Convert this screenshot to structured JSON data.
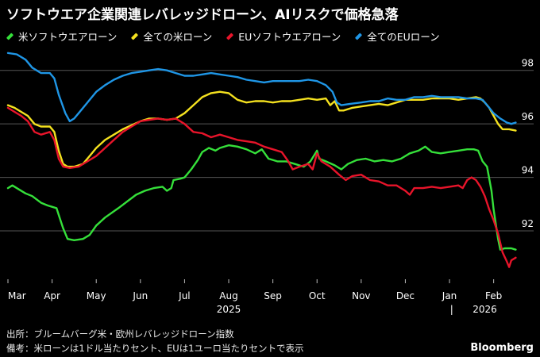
{
  "chart_data": {
    "type": "line",
    "title": "ソフトウエア企業関連レバレッジドローン、AIリスクで価格急落",
    "xlabel": "",
    "ylabel": "",
    "ylim": [
      90.4,
      99.0
    ],
    "yticks": [
      92,
      94,
      96,
      98
    ],
    "grid": true,
    "legend_position": "top-left",
    "x_month_labels": [
      "Mar",
      "Apr",
      "May",
      "Jun",
      "Jul",
      "Aug",
      "Sep",
      "Oct",
      "Nov",
      "Dec",
      "Jan",
      "Feb"
    ],
    "year_labels": [
      {
        "label": "2025",
        "month_index": 5
      },
      {
        "label": "2026",
        "month_index": 10.8
      }
    ],
    "year_separator": "|",
    "x_unit": "months since start of March 2025",
    "series": [
      {
        "name": "米ソフトウエアローン",
        "color": "#35e03a",
        "points": [
          [
            0,
            93.6
          ],
          [
            0.1,
            93.7
          ],
          [
            0.25,
            93.55
          ],
          [
            0.4,
            93.4
          ],
          [
            0.55,
            93.3
          ],
          [
            0.75,
            93.05
          ],
          [
            0.9,
            92.95
          ],
          [
            1.0,
            92.9
          ],
          [
            1.1,
            92.85
          ],
          [
            1.15,
            92.6
          ],
          [
            1.25,
            92.1
          ],
          [
            1.35,
            91.7
          ],
          [
            1.5,
            91.65
          ],
          [
            1.7,
            91.7
          ],
          [
            1.85,
            91.85
          ],
          [
            2.0,
            92.2
          ],
          [
            2.2,
            92.5
          ],
          [
            2.5,
            92.85
          ],
          [
            2.7,
            93.1
          ],
          [
            2.9,
            93.35
          ],
          [
            3.1,
            93.5
          ],
          [
            3.3,
            93.6
          ],
          [
            3.5,
            93.65
          ],
          [
            3.6,
            93.5
          ],
          [
            3.7,
            93.6
          ],
          [
            3.75,
            93.9
          ],
          [
            3.9,
            93.95
          ],
          [
            4.0,
            94.0
          ],
          [
            4.15,
            94.3
          ],
          [
            4.3,
            94.65
          ],
          [
            4.4,
            94.95
          ],
          [
            4.55,
            95.1
          ],
          [
            4.7,
            95.0
          ],
          [
            4.8,
            95.1
          ],
          [
            5.0,
            95.2
          ],
          [
            5.2,
            95.15
          ],
          [
            5.4,
            95.05
          ],
          [
            5.6,
            94.9
          ],
          [
            5.75,
            95.05
          ],
          [
            5.9,
            94.7
          ],
          [
            6.1,
            94.6
          ],
          [
            6.3,
            94.6
          ],
          [
            6.5,
            94.5
          ],
          [
            6.7,
            94.4
          ],
          [
            6.85,
            94.6
          ],
          [
            7.0,
            95.0
          ],
          [
            7.05,
            94.7
          ],
          [
            7.2,
            94.6
          ],
          [
            7.4,
            94.45
          ],
          [
            7.55,
            94.3
          ],
          [
            7.7,
            94.5
          ],
          [
            7.9,
            94.65
          ],
          [
            8.1,
            94.7
          ],
          [
            8.3,
            94.6
          ],
          [
            8.5,
            94.65
          ],
          [
            8.7,
            94.6
          ],
          [
            8.9,
            94.7
          ],
          [
            9.1,
            94.9
          ],
          [
            9.3,
            95.0
          ],
          [
            9.45,
            95.15
          ],
          [
            9.6,
            94.95
          ],
          [
            9.8,
            94.9
          ],
          [
            10.0,
            94.95
          ],
          [
            10.2,
            95.0
          ],
          [
            10.4,
            95.05
          ],
          [
            10.55,
            95.05
          ],
          [
            10.65,
            95.0
          ],
          [
            10.75,
            94.6
          ],
          [
            10.85,
            94.4
          ],
          [
            10.95,
            93.5
          ],
          [
            11.0,
            92.8
          ],
          [
            11.1,
            91.7
          ],
          [
            11.15,
            91.3
          ],
          [
            11.25,
            91.35
          ],
          [
            11.4,
            91.35
          ],
          [
            11.5,
            91.3
          ]
        ]
      },
      {
        "name": "全ての米ローン",
        "color": "#f4e11f",
        "points": [
          [
            0,
            96.7
          ],
          [
            0.15,
            96.6
          ],
          [
            0.3,
            96.45
          ],
          [
            0.45,
            96.3
          ],
          [
            0.6,
            96.0
          ],
          [
            0.75,
            95.9
          ],
          [
            0.95,
            95.9
          ],
          [
            1.05,
            95.7
          ],
          [
            1.15,
            95.0
          ],
          [
            1.25,
            94.5
          ],
          [
            1.35,
            94.4
          ],
          [
            1.5,
            94.4
          ],
          [
            1.7,
            94.5
          ],
          [
            1.85,
            94.8
          ],
          [
            2.0,
            95.1
          ],
          [
            2.2,
            95.4
          ],
          [
            2.4,
            95.6
          ],
          [
            2.6,
            95.8
          ],
          [
            2.8,
            95.95
          ],
          [
            3.0,
            96.1
          ],
          [
            3.2,
            96.2
          ],
          [
            3.4,
            96.2
          ],
          [
            3.6,
            96.15
          ],
          [
            3.8,
            96.2
          ],
          [
            4.0,
            96.4
          ],
          [
            4.2,
            96.7
          ],
          [
            4.4,
            97.0
          ],
          [
            4.6,
            97.15
          ],
          [
            4.8,
            97.2
          ],
          [
            5.0,
            97.15
          ],
          [
            5.2,
            96.9
          ],
          [
            5.4,
            96.8
          ],
          [
            5.6,
            96.85
          ],
          [
            5.8,
            96.85
          ],
          [
            6.0,
            96.8
          ],
          [
            6.2,
            96.85
          ],
          [
            6.4,
            96.85
          ],
          [
            6.6,
            96.9
          ],
          [
            6.8,
            96.95
          ],
          [
            7.0,
            96.9
          ],
          [
            7.2,
            96.95
          ],
          [
            7.3,
            96.7
          ],
          [
            7.4,
            96.85
          ],
          [
            7.5,
            96.5
          ],
          [
            7.6,
            96.5
          ],
          [
            7.8,
            96.6
          ],
          [
            8.0,
            96.65
          ],
          [
            8.2,
            96.7
          ],
          [
            8.4,
            96.75
          ],
          [
            8.6,
            96.7
          ],
          [
            8.8,
            96.8
          ],
          [
            9.0,
            96.9
          ],
          [
            9.2,
            96.9
          ],
          [
            9.4,
            96.9
          ],
          [
            9.6,
            96.95
          ],
          [
            9.8,
            96.95
          ],
          [
            10.0,
            96.95
          ],
          [
            10.2,
            96.9
          ],
          [
            10.4,
            96.95
          ],
          [
            10.6,
            97.0
          ],
          [
            10.7,
            96.95
          ],
          [
            10.8,
            96.8
          ],
          [
            10.9,
            96.6
          ],
          [
            11.0,
            96.3
          ],
          [
            11.1,
            96.0
          ],
          [
            11.2,
            95.8
          ],
          [
            11.35,
            95.8
          ],
          [
            11.5,
            95.75
          ]
        ]
      },
      {
        "name": "EUソフトウエアローン",
        "color": "#e8142a",
        "points": [
          [
            0,
            96.6
          ],
          [
            0.15,
            96.45
          ],
          [
            0.3,
            96.3
          ],
          [
            0.45,
            96.1
          ],
          [
            0.6,
            95.7
          ],
          [
            0.75,
            95.6
          ],
          [
            0.95,
            95.7
          ],
          [
            1.05,
            95.4
          ],
          [
            1.15,
            94.7
          ],
          [
            1.25,
            94.4
          ],
          [
            1.4,
            94.35
          ],
          [
            1.6,
            94.4
          ],
          [
            1.8,
            94.6
          ],
          [
            2.0,
            94.8
          ],
          [
            2.2,
            95.1
          ],
          [
            2.4,
            95.4
          ],
          [
            2.6,
            95.7
          ],
          [
            2.8,
            95.9
          ],
          [
            3.0,
            96.1
          ],
          [
            3.2,
            96.15
          ],
          [
            3.4,
            96.2
          ],
          [
            3.6,
            96.15
          ],
          [
            3.8,
            96.2
          ],
          [
            4.0,
            96.0
          ],
          [
            4.2,
            95.7
          ],
          [
            4.4,
            95.65
          ],
          [
            4.6,
            95.5
          ],
          [
            4.8,
            95.6
          ],
          [
            5.0,
            95.5
          ],
          [
            5.2,
            95.4
          ],
          [
            5.4,
            95.35
          ],
          [
            5.6,
            95.3
          ],
          [
            5.8,
            95.15
          ],
          [
            6.0,
            95.05
          ],
          [
            6.2,
            94.95
          ],
          [
            6.35,
            94.6
          ],
          [
            6.45,
            94.3
          ],
          [
            6.6,
            94.4
          ],
          [
            6.8,
            94.5
          ],
          [
            6.9,
            94.3
          ],
          [
            7.0,
            94.9
          ],
          [
            7.1,
            94.6
          ],
          [
            7.3,
            94.4
          ],
          [
            7.5,
            94.1
          ],
          [
            7.65,
            93.9
          ],
          [
            7.8,
            94.05
          ],
          [
            8.0,
            94.1
          ],
          [
            8.2,
            93.9
          ],
          [
            8.4,
            93.85
          ],
          [
            8.6,
            93.7
          ],
          [
            8.8,
            93.7
          ],
          [
            9.0,
            93.5
          ],
          [
            9.1,
            93.35
          ],
          [
            9.2,
            93.6
          ],
          [
            9.4,
            93.6
          ],
          [
            9.6,
            93.65
          ],
          [
            9.8,
            93.6
          ],
          [
            10.0,
            93.65
          ],
          [
            10.2,
            93.7
          ],
          [
            10.3,
            93.6
          ],
          [
            10.4,
            93.9
          ],
          [
            10.5,
            94.0
          ],
          [
            10.6,
            93.9
          ],
          [
            10.7,
            93.65
          ],
          [
            10.8,
            93.3
          ],
          [
            10.9,
            92.8
          ],
          [
            11.0,
            92.4
          ],
          [
            11.1,
            91.9
          ],
          [
            11.2,
            91.2
          ],
          [
            11.3,
            90.85
          ],
          [
            11.35,
            90.65
          ],
          [
            11.4,
            90.9
          ],
          [
            11.5,
            91.0
          ]
        ]
      },
      {
        "name": "全てのEUローン",
        "color": "#1f96e6",
        "points": [
          [
            0,
            98.65
          ],
          [
            0.2,
            98.6
          ],
          [
            0.4,
            98.4
          ],
          [
            0.55,
            98.1
          ],
          [
            0.75,
            97.9
          ],
          [
            0.95,
            97.9
          ],
          [
            1.05,
            97.7
          ],
          [
            1.15,
            97.1
          ],
          [
            1.3,
            96.4
          ],
          [
            1.4,
            96.1
          ],
          [
            1.5,
            96.2
          ],
          [
            1.6,
            96.4
          ],
          [
            1.8,
            96.8
          ],
          [
            2.0,
            97.2
          ],
          [
            2.2,
            97.45
          ],
          [
            2.4,
            97.65
          ],
          [
            2.6,
            97.8
          ],
          [
            2.8,
            97.9
          ],
          [
            3.0,
            97.95
          ],
          [
            3.2,
            98.0
          ],
          [
            3.4,
            98.05
          ],
          [
            3.6,
            98.0
          ],
          [
            3.8,
            97.9
          ],
          [
            4.0,
            97.8
          ],
          [
            4.2,
            97.8
          ],
          [
            4.4,
            97.85
          ],
          [
            4.6,
            97.9
          ],
          [
            4.8,
            97.85
          ],
          [
            5.0,
            97.8
          ],
          [
            5.2,
            97.75
          ],
          [
            5.4,
            97.65
          ],
          [
            5.6,
            97.6
          ],
          [
            5.8,
            97.55
          ],
          [
            6.0,
            97.6
          ],
          [
            6.2,
            97.6
          ],
          [
            6.4,
            97.6
          ],
          [
            6.6,
            97.6
          ],
          [
            6.8,
            97.65
          ],
          [
            7.0,
            97.6
          ],
          [
            7.2,
            97.45
          ],
          [
            7.35,
            97.2
          ],
          [
            7.45,
            96.8
          ],
          [
            7.55,
            96.7
          ],
          [
            7.75,
            96.75
          ],
          [
            8.0,
            96.8
          ],
          [
            8.2,
            96.85
          ],
          [
            8.4,
            96.85
          ],
          [
            8.6,
            96.95
          ],
          [
            8.8,
            96.9
          ],
          [
            9.0,
            96.9
          ],
          [
            9.2,
            97.0
          ],
          [
            9.4,
            97.0
          ],
          [
            9.6,
            97.05
          ],
          [
            9.8,
            97.0
          ],
          [
            10.0,
            97.0
          ],
          [
            10.2,
            97.0
          ],
          [
            10.4,
            96.95
          ],
          [
            10.6,
            96.95
          ],
          [
            10.75,
            96.9
          ],
          [
            10.9,
            96.6
          ],
          [
            11.0,
            96.4
          ],
          [
            11.15,
            96.2
          ],
          [
            11.3,
            96.05
          ],
          [
            11.4,
            96.0
          ],
          [
            11.5,
            96.05
          ]
        ]
      }
    ]
  },
  "footer": {
    "source": "出所：ブルームバーグ米・欧州レバレッジドローン指数",
    "note": "備考：米ローンは1ドル当たりセント、EUは1ユーロ当たりセントで表示"
  },
  "brand": "Bloomberg",
  "colors": {
    "background": "#000000",
    "grid": "#555555",
    "text": "#ffffff"
  }
}
